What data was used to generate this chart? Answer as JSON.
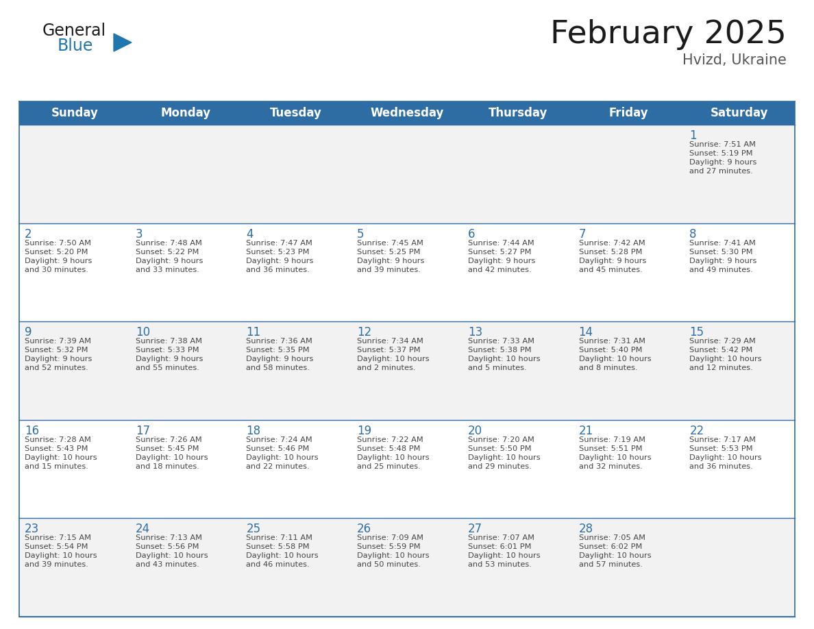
{
  "title": "February 2025",
  "subtitle": "Hvizd, Ukraine",
  "days_of_week": [
    "Sunday",
    "Monday",
    "Tuesday",
    "Wednesday",
    "Thursday",
    "Friday",
    "Saturday"
  ],
  "header_bg": "#2E6DA4",
  "header_text": "#FFFFFF",
  "cell_bg_white": "#FFFFFF",
  "cell_bg_gray": "#F2F2F2",
  "day_number_color": "#2E6DA4",
  "text_color": "#444444",
  "border_color": "#2E6DA4",
  "calendar_data": [
    [
      {
        "day": null
      },
      {
        "day": null
      },
      {
        "day": null
      },
      {
        "day": null
      },
      {
        "day": null
      },
      {
        "day": null
      },
      {
        "day": 1,
        "sunrise": "7:51 AM",
        "sunset": "5:19 PM",
        "daylight": "9 hours",
        "daylight2": "and 27 minutes."
      }
    ],
    [
      {
        "day": 2,
        "sunrise": "7:50 AM",
        "sunset": "5:20 PM",
        "daylight": "9 hours",
        "daylight2": "and 30 minutes."
      },
      {
        "day": 3,
        "sunrise": "7:48 AM",
        "sunset": "5:22 PM",
        "daylight": "9 hours",
        "daylight2": "and 33 minutes."
      },
      {
        "day": 4,
        "sunrise": "7:47 AM",
        "sunset": "5:23 PM",
        "daylight": "9 hours",
        "daylight2": "and 36 minutes."
      },
      {
        "day": 5,
        "sunrise": "7:45 AM",
        "sunset": "5:25 PM",
        "daylight": "9 hours",
        "daylight2": "and 39 minutes."
      },
      {
        "day": 6,
        "sunrise": "7:44 AM",
        "sunset": "5:27 PM",
        "daylight": "9 hours",
        "daylight2": "and 42 minutes."
      },
      {
        "day": 7,
        "sunrise": "7:42 AM",
        "sunset": "5:28 PM",
        "daylight": "9 hours",
        "daylight2": "and 45 minutes."
      },
      {
        "day": 8,
        "sunrise": "7:41 AM",
        "sunset": "5:30 PM",
        "daylight": "9 hours",
        "daylight2": "and 49 minutes."
      }
    ],
    [
      {
        "day": 9,
        "sunrise": "7:39 AM",
        "sunset": "5:32 PM",
        "daylight": "9 hours",
        "daylight2": "and 52 minutes."
      },
      {
        "day": 10,
        "sunrise": "7:38 AM",
        "sunset": "5:33 PM",
        "daylight": "9 hours",
        "daylight2": "and 55 minutes."
      },
      {
        "day": 11,
        "sunrise": "7:36 AM",
        "sunset": "5:35 PM",
        "daylight": "9 hours",
        "daylight2": "and 58 minutes."
      },
      {
        "day": 12,
        "sunrise": "7:34 AM",
        "sunset": "5:37 PM",
        "daylight": "10 hours",
        "daylight2": "and 2 minutes."
      },
      {
        "day": 13,
        "sunrise": "7:33 AM",
        "sunset": "5:38 PM",
        "daylight": "10 hours",
        "daylight2": "and 5 minutes."
      },
      {
        "day": 14,
        "sunrise": "7:31 AM",
        "sunset": "5:40 PM",
        "daylight": "10 hours",
        "daylight2": "and 8 minutes."
      },
      {
        "day": 15,
        "sunrise": "7:29 AM",
        "sunset": "5:42 PM",
        "daylight": "10 hours",
        "daylight2": "and 12 minutes."
      }
    ],
    [
      {
        "day": 16,
        "sunrise": "7:28 AM",
        "sunset": "5:43 PM",
        "daylight": "10 hours",
        "daylight2": "and 15 minutes."
      },
      {
        "day": 17,
        "sunrise": "7:26 AM",
        "sunset": "5:45 PM",
        "daylight": "10 hours",
        "daylight2": "and 18 minutes."
      },
      {
        "day": 18,
        "sunrise": "7:24 AM",
        "sunset": "5:46 PM",
        "daylight": "10 hours",
        "daylight2": "and 22 minutes."
      },
      {
        "day": 19,
        "sunrise": "7:22 AM",
        "sunset": "5:48 PM",
        "daylight": "10 hours",
        "daylight2": "and 25 minutes."
      },
      {
        "day": 20,
        "sunrise": "7:20 AM",
        "sunset": "5:50 PM",
        "daylight": "10 hours",
        "daylight2": "and 29 minutes."
      },
      {
        "day": 21,
        "sunrise": "7:19 AM",
        "sunset": "5:51 PM",
        "daylight": "10 hours",
        "daylight2": "and 32 minutes."
      },
      {
        "day": 22,
        "sunrise": "7:17 AM",
        "sunset": "5:53 PM",
        "daylight": "10 hours",
        "daylight2": "and 36 minutes."
      }
    ],
    [
      {
        "day": 23,
        "sunrise": "7:15 AM",
        "sunset": "5:54 PM",
        "daylight": "10 hours",
        "daylight2": "and 39 minutes."
      },
      {
        "day": 24,
        "sunrise": "7:13 AM",
        "sunset": "5:56 PM",
        "daylight": "10 hours",
        "daylight2": "and 43 minutes."
      },
      {
        "day": 25,
        "sunrise": "7:11 AM",
        "sunset": "5:58 PM",
        "daylight": "10 hours",
        "daylight2": "and 46 minutes."
      },
      {
        "day": 26,
        "sunrise": "7:09 AM",
        "sunset": "5:59 PM",
        "daylight": "10 hours",
        "daylight2": "and 50 minutes."
      },
      {
        "day": 27,
        "sunrise": "7:07 AM",
        "sunset": "6:01 PM",
        "daylight": "10 hours",
        "daylight2": "and 53 minutes."
      },
      {
        "day": 28,
        "sunrise": "7:05 AM",
        "sunset": "6:02 PM",
        "daylight": "10 hours",
        "daylight2": "and 57 minutes."
      },
      {
        "day": null
      }
    ]
  ],
  "logo_general_color": "#1a1a1a",
  "logo_blue_color": "#2176AE",
  "logo_triangle_color": "#2176AE",
  "title_color": "#1a1a1a",
  "subtitle_color": "#555555"
}
